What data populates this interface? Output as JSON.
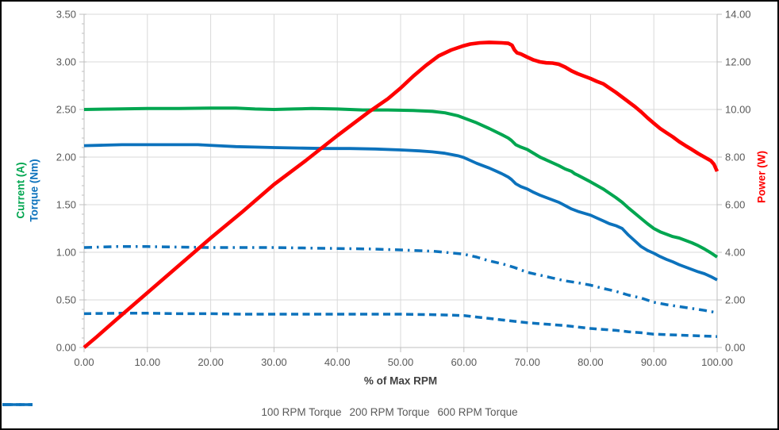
{
  "window": {
    "background": "#FFFFFF",
    "border_color": "#000000"
  },
  "colors": {
    "gridline": "#D9D9D9",
    "axis_line": "#BFBFBF",
    "tick_label": "#595959",
    "x_title": "#404040",
    "current_green": "#00A650",
    "torque_blue": "#0C72BC",
    "power_red": "#FE0000"
  },
  "chart_data": {
    "type": "line",
    "grid": true,
    "x_axis": {
      "title": "% of Max RPM",
      "min": 0,
      "max": 100,
      "tick_step": 10,
      "tick_labels": [
        "0.00",
        "10.00",
        "20.00",
        "30.00",
        "40.00",
        "50.00",
        "60.00",
        "70.00",
        "80.00",
        "90.00",
        "100.00"
      ]
    },
    "y_axis_left": {
      "title_current": "Current (A)",
      "title_torque": "Torque (Nm)",
      "title_current_color": "#00A650",
      "title_torque_color": "#0C72BC",
      "min": 0,
      "max": 3.5,
      "tick_step": 0.5,
      "minor_tick_step": 0.1,
      "tick_labels": [
        "0.00",
        "0.50",
        "1.00",
        "1.50",
        "2.00",
        "2.50",
        "3.00",
        "3.50"
      ]
    },
    "y_axis_right": {
      "title": "Power (W)",
      "title_color": "#FE0000",
      "min": 0,
      "max": 14,
      "tick_step": 2,
      "tick_labels": [
        "0.00",
        "2.00",
        "4.00",
        "6.00",
        "8.00",
        "10.00",
        "12.00",
        "14.00"
      ]
    },
    "legend": {
      "position": "bottom",
      "entries": [
        "100 RPM Torque",
        "200 RPM Torque",
        "600 RPM Torque"
      ]
    },
    "series": [
      {
        "name": "600 RPM Torque",
        "axis": "left",
        "color": "#0C72BC",
        "style": "dashed",
        "width": 3.5,
        "in_legend": true,
        "points": [
          [
            0,
            0.355
          ],
          [
            5,
            0.36
          ],
          [
            10,
            0.36
          ],
          [
            15,
            0.355
          ],
          [
            20,
            0.355
          ],
          [
            25,
            0.35
          ],
          [
            30,
            0.35
          ],
          [
            35,
            0.35
          ],
          [
            40,
            0.35
          ],
          [
            45,
            0.35
          ],
          [
            50,
            0.35
          ],
          [
            55,
            0.345
          ],
          [
            58,
            0.34
          ],
          [
            60,
            0.335
          ],
          [
            62,
            0.32
          ],
          [
            64,
            0.305
          ],
          [
            66,
            0.29
          ],
          [
            68,
            0.275
          ],
          [
            70,
            0.26
          ],
          [
            72,
            0.25
          ],
          [
            74,
            0.24
          ],
          [
            76,
            0.23
          ],
          [
            78,
            0.215
          ],
          [
            80,
            0.2
          ],
          [
            82,
            0.19
          ],
          [
            84,
            0.18
          ],
          [
            86,
            0.165
          ],
          [
            88,
            0.155
          ],
          [
            90,
            0.14
          ],
          [
            92,
            0.135
          ],
          [
            94,
            0.13
          ],
          [
            96,
            0.125
          ],
          [
            98,
            0.12
          ],
          [
            100,
            0.115
          ]
        ]
      },
      {
        "name": "200 RPM Torque",
        "axis": "left",
        "color": "#0C72BC",
        "style": "dashdot",
        "width": 3.5,
        "in_legend": true,
        "points": [
          [
            0,
            1.05
          ],
          [
            5,
            1.06
          ],
          [
            10,
            1.06
          ],
          [
            15,
            1.055
          ],
          [
            20,
            1.05
          ],
          [
            25,
            1.05
          ],
          [
            30,
            1.05
          ],
          [
            35,
            1.045
          ],
          [
            40,
            1.04
          ],
          [
            45,
            1.035
          ],
          [
            50,
            1.025
          ],
          [
            55,
            1.012
          ],
          [
            57,
            1.0
          ],
          [
            60,
            0.98
          ],
          [
            62,
            0.95
          ],
          [
            64,
            0.91
          ],
          [
            66,
            0.88
          ],
          [
            68,
            0.84
          ],
          [
            70,
            0.79
          ],
          [
            72,
            0.76
          ],
          [
            74,
            0.73
          ],
          [
            76,
            0.7
          ],
          [
            78,
            0.68
          ],
          [
            80,
            0.655
          ],
          [
            82,
            0.62
          ],
          [
            84,
            0.59
          ],
          [
            86,
            0.55
          ],
          [
            88,
            0.52
          ],
          [
            90,
            0.475
          ],
          [
            92,
            0.45
          ],
          [
            94,
            0.43
          ],
          [
            96,
            0.41
          ],
          [
            98,
            0.39
          ],
          [
            100,
            0.365
          ]
        ]
      },
      {
        "name": "100 RPM Torque",
        "axis": "left",
        "color": "#0C72BC",
        "style": "solid",
        "width": 3.8,
        "in_legend": true,
        "points": [
          [
            0,
            2.12
          ],
          [
            3,
            2.125
          ],
          [
            6,
            2.13
          ],
          [
            10,
            2.13
          ],
          [
            14,
            2.13
          ],
          [
            18,
            2.13
          ],
          [
            21,
            2.12
          ],
          [
            24,
            2.11
          ],
          [
            27,
            2.105
          ],
          [
            30,
            2.1
          ],
          [
            34,
            2.095
          ],
          [
            38,
            2.09
          ],
          [
            42,
            2.09
          ],
          [
            46,
            2.085
          ],
          [
            50,
            2.075
          ],
          [
            53,
            2.065
          ],
          [
            55,
            2.055
          ],
          [
            57,
            2.04
          ],
          [
            59,
            2.015
          ],
          [
            60,
            1.995
          ],
          [
            61,
            1.965
          ],
          [
            62,
            1.935
          ],
          [
            63,
            1.91
          ],
          [
            64,
            1.885
          ],
          [
            65,
            1.855
          ],
          [
            66,
            1.825
          ],
          [
            67,
            1.79
          ],
          [
            67.5,
            1.765
          ],
          [
            68.2,
            1.72
          ],
          [
            69,
            1.69
          ],
          [
            70,
            1.665
          ],
          [
            71,
            1.63
          ],
          [
            72,
            1.6
          ],
          [
            73,
            1.575
          ],
          [
            74,
            1.55
          ],
          [
            75,
            1.525
          ],
          [
            76,
            1.49
          ],
          [
            77,
            1.455
          ],
          [
            78,
            1.43
          ],
          [
            79,
            1.41
          ],
          [
            80,
            1.39
          ],
          [
            81,
            1.36
          ],
          [
            82,
            1.33
          ],
          [
            83,
            1.3
          ],
          [
            84,
            1.28
          ],
          [
            85,
            1.25
          ],
          [
            86,
            1.18
          ],
          [
            87,
            1.12
          ],
          [
            88,
            1.06
          ],
          [
            89,
            1.02
          ],
          [
            90,
            0.99
          ],
          [
            91,
            0.955
          ],
          [
            92,
            0.925
          ],
          [
            93,
            0.9
          ],
          [
            94,
            0.87
          ],
          [
            95,
            0.845
          ],
          [
            96,
            0.82
          ],
          [
            97,
            0.795
          ],
          [
            98,
            0.775
          ],
          [
            99,
            0.745
          ],
          [
            100,
            0.71
          ]
        ]
      },
      {
        "name": "Current",
        "axis": "left",
        "color": "#00A650",
        "style": "solid",
        "width": 4,
        "in_legend": false,
        "points": [
          [
            0,
            2.5
          ],
          [
            5,
            2.505
          ],
          [
            10,
            2.51
          ],
          [
            15,
            2.51
          ],
          [
            20,
            2.515
          ],
          [
            24,
            2.515
          ],
          [
            27,
            2.505
          ],
          [
            30,
            2.5
          ],
          [
            33,
            2.505
          ],
          [
            36,
            2.51
          ],
          [
            40,
            2.505
          ],
          [
            44,
            2.495
          ],
          [
            48,
            2.495
          ],
          [
            52,
            2.49
          ],
          [
            55,
            2.48
          ],
          [
            57,
            2.465
          ],
          [
            59,
            2.435
          ],
          [
            60,
            2.41
          ],
          [
            62,
            2.36
          ],
          [
            64,
            2.3
          ],
          [
            66,
            2.235
          ],
          [
            67,
            2.2
          ],
          [
            67.5,
            2.175
          ],
          [
            68.2,
            2.13
          ],
          [
            69,
            2.105
          ],
          [
            70,
            2.08
          ],
          [
            72,
            2.0
          ],
          [
            74,
            1.94
          ],
          [
            75,
            1.91
          ],
          [
            76,
            1.875
          ],
          [
            77,
            1.85
          ],
          [
            77.5,
            1.825
          ],
          [
            78,
            1.81
          ],
          [
            80,
            1.74
          ],
          [
            82,
            1.665
          ],
          [
            84,
            1.575
          ],
          [
            85,
            1.525
          ],
          [
            86,
            1.465
          ],
          [
            87,
            1.41
          ],
          [
            88,
            1.355
          ],
          [
            89,
            1.3
          ],
          [
            90,
            1.25
          ],
          [
            91,
            1.215
          ],
          [
            92,
            1.19
          ],
          [
            93,
            1.165
          ],
          [
            94,
            1.15
          ],
          [
            95,
            1.125
          ],
          [
            96,
            1.1
          ],
          [
            97,
            1.07
          ],
          [
            98,
            1.035
          ],
          [
            99,
            0.995
          ],
          [
            100,
            0.95
          ]
        ]
      },
      {
        "name": "Power",
        "axis": "right",
        "color": "#FE0000",
        "style": "solid",
        "width": 4.6,
        "in_legend": false,
        "points": [
          [
            0,
            0
          ],
          [
            2,
            0.45
          ],
          [
            5,
            1.15
          ],
          [
            10,
            2.3
          ],
          [
            15,
            3.45
          ],
          [
            20,
            4.6
          ],
          [
            25,
            5.7
          ],
          [
            30,
            6.85
          ],
          [
            35,
            7.85
          ],
          [
            40,
            8.9
          ],
          [
            43,
            9.5
          ],
          [
            45,
            9.9
          ],
          [
            48,
            10.45
          ],
          [
            50,
            10.9
          ],
          [
            52,
            11.4
          ],
          [
            54,
            11.85
          ],
          [
            56,
            12.25
          ],
          [
            58,
            12.5
          ],
          [
            60,
            12.68
          ],
          [
            61,
            12.75
          ],
          [
            62.5,
            12.8
          ],
          [
            64,
            12.82
          ],
          [
            66,
            12.8
          ],
          [
            67,
            12.78
          ],
          [
            67.6,
            12.7
          ],
          [
            68,
            12.5
          ],
          [
            68.4,
            12.38
          ],
          [
            69,
            12.33
          ],
          [
            70,
            12.2
          ],
          [
            71,
            12.08
          ],
          [
            72,
            12.0
          ],
          [
            73,
            11.96
          ],
          [
            74,
            11.95
          ],
          [
            75,
            11.9
          ],
          [
            76,
            11.78
          ],
          [
            77,
            11.62
          ],
          [
            78,
            11.5
          ],
          [
            79,
            11.4
          ],
          [
            80,
            11.3
          ],
          [
            81,
            11.18
          ],
          [
            82,
            11.08
          ],
          [
            83,
            10.9
          ],
          [
            84,
            10.72
          ],
          [
            85,
            10.52
          ],
          [
            86,
            10.32
          ],
          [
            87,
            10.12
          ],
          [
            88,
            9.9
          ],
          [
            89,
            9.65
          ],
          [
            90,
            9.42
          ],
          [
            91,
            9.2
          ],
          [
            92,
            9.02
          ],
          [
            93,
            8.85
          ],
          [
            94,
            8.65
          ],
          [
            95,
            8.48
          ],
          [
            96,
            8.32
          ],
          [
            97,
            8.15
          ],
          [
            98,
            8.0
          ],
          [
            99,
            7.85
          ],
          [
            99.5,
            7.7
          ],
          [
            100,
            7.4
          ]
        ]
      }
    ]
  }
}
